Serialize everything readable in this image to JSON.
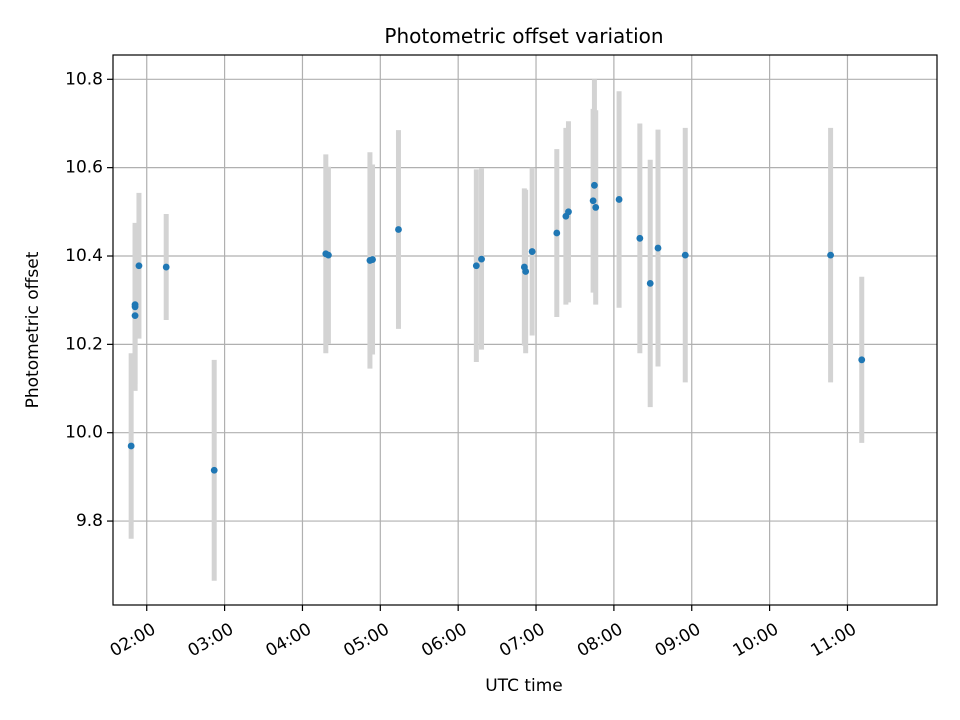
{
  "chart_data": {
    "type": "scatter",
    "title": "Photometric offset variation",
    "xlabel": "UTC time",
    "ylabel": "Photometric offset",
    "x_unit": "time",
    "xlim": [
      "01:34",
      "12:09"
    ],
    "ylim": [
      9.61,
      10.855
    ],
    "x_ticks": [
      "02:00",
      "03:00",
      "04:00",
      "05:00",
      "06:00",
      "07:00",
      "08:00",
      "09:00",
      "10:00",
      "11:00"
    ],
    "y_ticks": [
      9.8,
      10.0,
      10.2,
      10.4,
      10.6,
      10.8
    ],
    "y_tick_labels": [
      "9.8",
      "10.0",
      "10.2",
      "10.4",
      "10.6",
      "10.8"
    ],
    "grid": true,
    "point_color": "#1f77b4",
    "errorbar_color": "#d3d3d3",
    "points": [
      {
        "x": "01:48",
        "y": 9.97,
        "err": 0.21
      },
      {
        "x": "01:51",
        "y": 10.265,
        "err": 0.17
      },
      {
        "x": "01:51",
        "y": 10.285,
        "err": 0.19
      },
      {
        "x": "01:51",
        "y": 10.29,
        "err": 0.18
      },
      {
        "x": "01:54",
        "y": 10.378,
        "err": 0.165
      },
      {
        "x": "02:15",
        "y": 10.375,
        "err": 0.12
      },
      {
        "x": "02:52",
        "y": 9.915,
        "err": 0.25
      },
      {
        "x": "04:18",
        "y": 10.405,
        "err": 0.225
      },
      {
        "x": "04:20",
        "y": 10.402,
        "err": 0.2
      },
      {
        "x": "04:52",
        "y": 10.39,
        "err": 0.245
      },
      {
        "x": "04:54",
        "y": 10.392,
        "err": 0.215
      },
      {
        "x": "05:14",
        "y": 10.46,
        "err": 0.225
      },
      {
        "x": "06:14",
        "y": 10.378,
        "err": 0.218
      },
      {
        "x": "06:18",
        "y": 10.393,
        "err": 0.205
      },
      {
        "x": "06:51",
        "y": 10.375,
        "err": 0.178
      },
      {
        "x": "06:52",
        "y": 10.365,
        "err": 0.185
      },
      {
        "x": "06:57",
        "y": 10.41,
        "err": 0.19
      },
      {
        "x": "07:16",
        "y": 10.452,
        "err": 0.19
      },
      {
        "x": "07:23",
        "y": 10.49,
        "err": 0.2
      },
      {
        "x": "07:25",
        "y": 10.5,
        "err": 0.205
      },
      {
        "x": "07:44",
        "y": 10.525,
        "err": 0.208
      },
      {
        "x": "07:45",
        "y": 10.56,
        "err": 0.24
      },
      {
        "x": "07:46",
        "y": 10.51,
        "err": 0.22
      },
      {
        "x": "08:04",
        "y": 10.528,
        "err": 0.245
      },
      {
        "x": "08:20",
        "y": 10.44,
        "err": 0.26
      },
      {
        "x": "08:28",
        "y": 10.338,
        "err": 0.28
      },
      {
        "x": "08:34",
        "y": 10.418,
        "err": 0.268
      },
      {
        "x": "08:55",
        "y": 10.402,
        "err": 0.288
      },
      {
        "x": "10:47",
        "y": 10.402,
        "err": 0.288
      },
      {
        "x": "11:11",
        "y": 10.165,
        "err": 0.188
      }
    ]
  }
}
